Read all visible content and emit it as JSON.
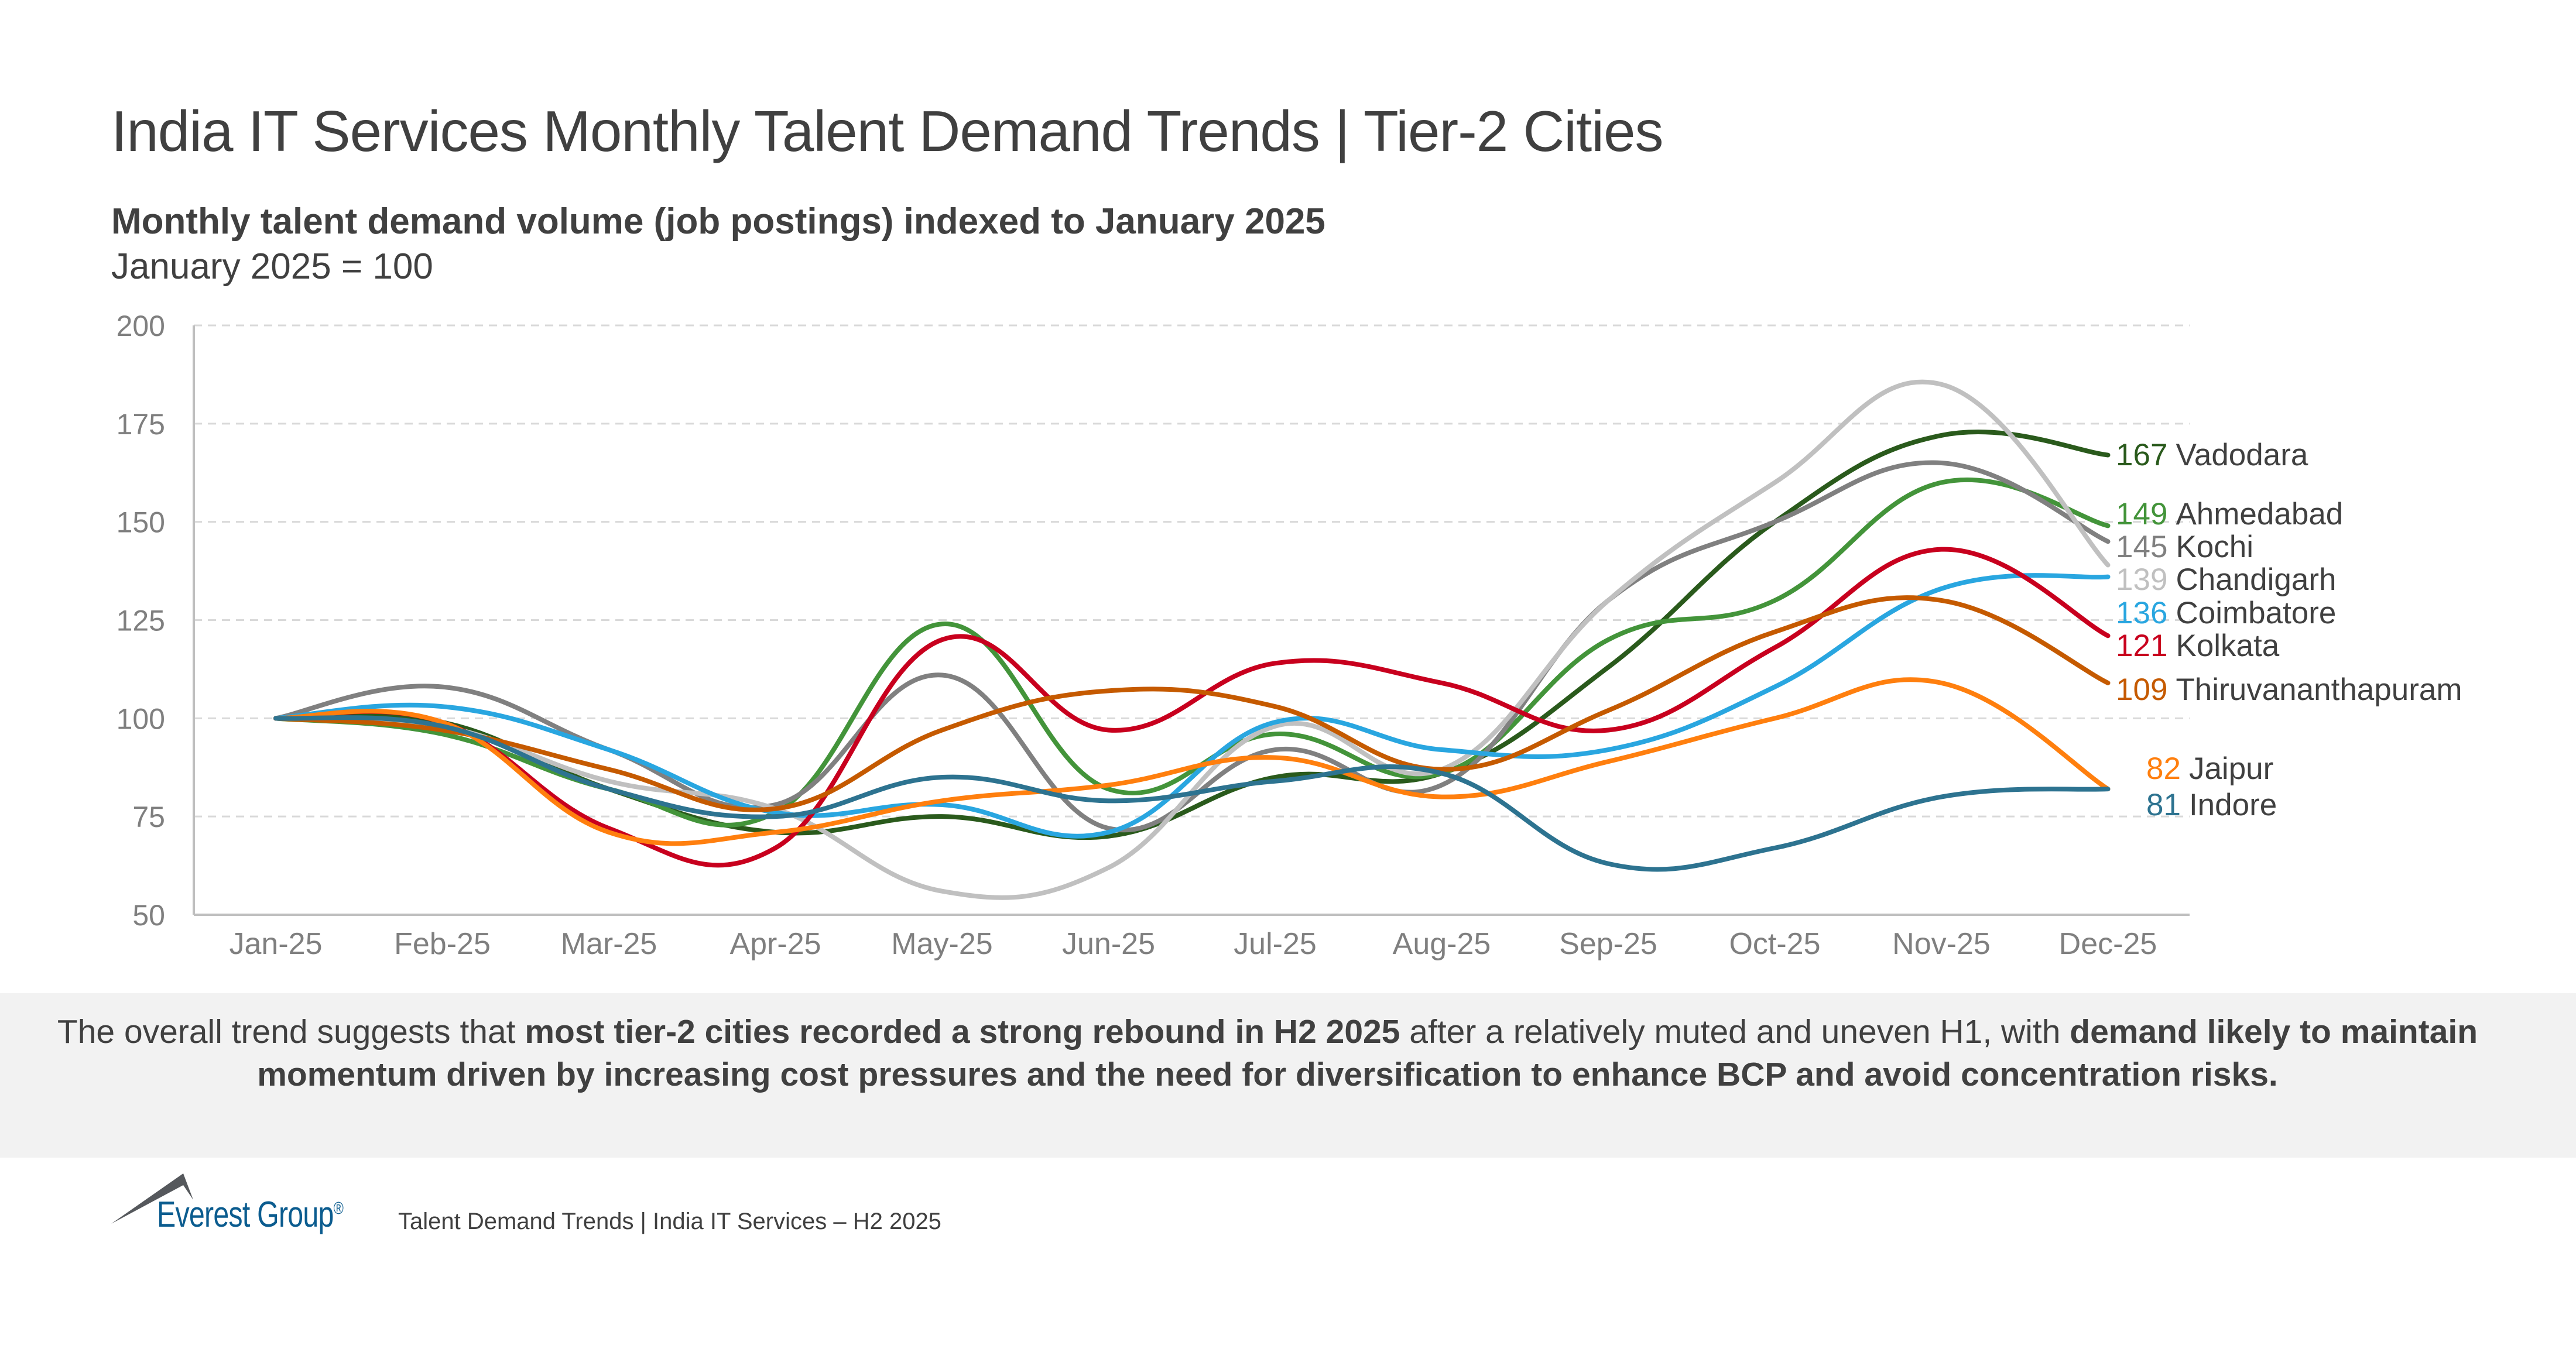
{
  "title": "India IT Services Monthly Talent Demand Trends | Tier-2 Cities",
  "subtitle": "Monthly talent demand volume (job postings) indexed to January 2025",
  "subnote": "January 2025 = 100",
  "chart_data": {
    "type": "line",
    "title": "",
    "xlabel": "",
    "ylabel": "",
    "ylim": [
      50,
      200
    ],
    "yticks": [
      50,
      75,
      100,
      125,
      150,
      175,
      200
    ],
    "grid": "horizontal dashed",
    "smoothed": true,
    "legend": "end-of-line labels (right)",
    "categories": [
      "Jan-25",
      "Feb-25",
      "Mar-25",
      "Apr-25",
      "May-25",
      "Jun-25",
      "Jul-25",
      "Aug-25",
      "Sep-25",
      "Oct-25",
      "Nov-25",
      "Dec-25"
    ],
    "series": [
      {
        "name": "Vadodara",
        "color": "#2a5a1c",
        "end_label": "167",
        "values": [
          100,
          99,
          82,
          71,
          75,
          70,
          85,
          86,
          113,
          150,
          172,
          167
        ]
      },
      {
        "name": "Ahmedabad",
        "color": "#43943a",
        "end_label": "149",
        "values": [
          100,
          96,
          82,
          76,
          124,
          82,
          96,
          86,
          120,
          130,
          160,
          149
        ]
      },
      {
        "name": "Kochi",
        "color": "#808080",
        "end_label": "145",
        "values": [
          100,
          108,
          92,
          78,
          111,
          72,
          92,
          83,
          130,
          150,
          165,
          145
        ]
      },
      {
        "name": "Chandigarh",
        "color": "#c0c0c0",
        "end_label": "139",
        "values": [
          100,
          98,
          84,
          77,
          56,
          62,
          98,
          87,
          130,
          160,
          185,
          139
        ]
      },
      {
        "name": "Coimbatore",
        "color": "#29a6e0",
        "end_label": "136",
        "values": [
          100,
          103,
          92,
          76,
          78,
          71,
          99,
          92,
          92,
          108,
          133,
          136
        ]
      },
      {
        "name": "Kolkata",
        "color": "#c8001e",
        "end_label": "121",
        "values": [
          100,
          99,
          72,
          67,
          120,
          97,
          114,
          109,
          97,
          118,
          143,
          121
        ]
      },
      {
        "name": "Thiruvananthapuram",
        "color": "#c55a00",
        "end_label": "109",
        "values": [
          100,
          97,
          87,
          77,
          97,
          107,
          103,
          87,
          102,
          122,
          130,
          109
        ]
      },
      {
        "name": "Jaipur",
        "color": "#ff7f0e",
        "end_label": "82",
        "values": [
          100,
          99,
          71,
          71,
          79,
          83,
          90,
          80,
          89,
          100,
          109,
          82
        ]
      },
      {
        "name": "Indore",
        "color": "#2d7390",
        "end_label": "81",
        "values": [
          100,
          98,
          82,
          75,
          85,
          79,
          84,
          86,
          63,
          67,
          80,
          82
        ]
      }
    ]
  },
  "insight": {
    "p1": "The overall trend suggests that ",
    "b1": "most tier-2 cities recorded a strong rebound in H2 2025",
    "p2": " after a relatively muted and uneven H1, with ",
    "b2": "demand likely to maintain momentum driven by increasing cost pressures and the need for diversification to enhance BCP and avoid concentration risks."
  },
  "footer": {
    "brand": "Everest Group",
    "registered": "®",
    "text": "Talent Demand Trends | India IT Services – H2 2025"
  }
}
